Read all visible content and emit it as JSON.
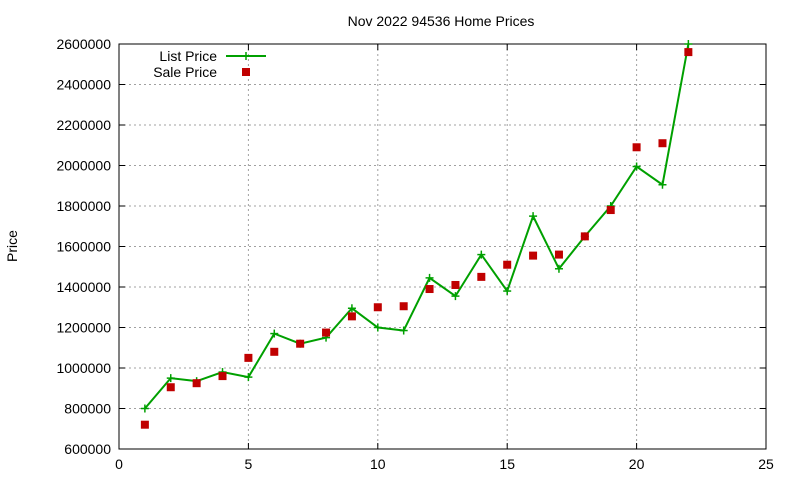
{
  "chart_data": {
    "type": "line",
    "title": "Nov 2022 94536 Home Prices",
    "xlabel": "",
    "ylabel": "Price",
    "xlim": [
      0,
      25
    ],
    "ylim": [
      600000,
      2600000
    ],
    "x_ticks": [
      "0",
      "5",
      "10",
      "15",
      "20",
      "25"
    ],
    "y_ticks": [
      "600000",
      "800000",
      "1000000",
      "1200000",
      "1400000",
      "1600000",
      "1800000",
      "2000000",
      "2200000",
      "2400000",
      "2600000"
    ],
    "grid": true,
    "legend_position": "top-left",
    "series": [
      {
        "name": "List Price",
        "kind": "line-with-plus-markers",
        "color": "#00a000",
        "points": [
          [
            1,
            800000
          ],
          [
            2,
            950000
          ],
          [
            3,
            935000
          ],
          [
            4,
            980000
          ],
          [
            5,
            955000
          ],
          [
            6,
            1170000
          ],
          [
            7,
            1120000
          ],
          [
            8,
            1150000
          ],
          [
            9,
            1295000
          ],
          [
            10,
            1200000
          ],
          [
            11,
            1185000
          ],
          [
            12,
            1445000
          ],
          [
            13,
            1355000
          ],
          [
            14,
            1560000
          ],
          [
            15,
            1380000
          ],
          [
            16,
            1750000
          ],
          [
            17,
            1490000
          ],
          [
            18,
            1650000
          ],
          [
            19,
            1800000
          ],
          [
            20,
            1995000
          ],
          [
            21,
            1905000
          ],
          [
            22,
            2600000
          ]
        ]
      },
      {
        "name": "Sale Price",
        "kind": "square-markers",
        "color": "#c00000",
        "points": [
          [
            1,
            720000
          ],
          [
            2,
            905000
          ],
          [
            3,
            925000
          ],
          [
            4,
            960000
          ],
          [
            5,
            1050000
          ],
          [
            6,
            1080000
          ],
          [
            7,
            1120000
          ],
          [
            8,
            1175000
          ],
          [
            9,
            1255000
          ],
          [
            10,
            1300000
          ],
          [
            11,
            1305000
          ],
          [
            12,
            1390000
          ],
          [
            13,
            1410000
          ],
          [
            14,
            1450000
          ],
          [
            15,
            1510000
          ],
          [
            16,
            1555000
          ],
          [
            17,
            1560000
          ],
          [
            18,
            1650000
          ],
          [
            19,
            1780000
          ],
          [
            20,
            2090000
          ],
          [
            21,
            2110000
          ],
          [
            22,
            2560000
          ]
        ]
      }
    ]
  }
}
